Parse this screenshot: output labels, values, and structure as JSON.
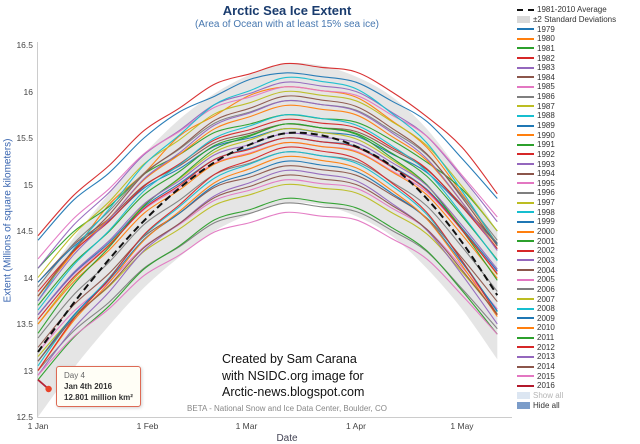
{
  "chart_data": {
    "type": "line",
    "title": "Arctic Sea Ice Extent",
    "subtitle": "(Area of Ocean with at least 15% sea ice)",
    "xlabel": "Date",
    "ylabel": "Extent (Millions of square kilometers)",
    "ylim": [
      12.5,
      16.5
    ],
    "grid": false,
    "legend_position": "right",
    "y_ticks": [
      12.5,
      13,
      13.5,
      14,
      14.5,
      15,
      15.5,
      16,
      16.5
    ],
    "x_ticks": [
      {
        "day": 1,
        "label": "1 Jan"
      },
      {
        "day": 32,
        "label": "1 Feb"
      },
      {
        "day": 60,
        "label": "1 Mar"
      },
      {
        "day": 91,
        "label": "1 Apr"
      },
      {
        "day": 121,
        "label": "1 May"
      }
    ],
    "days": [
      1,
      11,
      21,
      31,
      41,
      51,
      61,
      71,
      81,
      91,
      101,
      111,
      121,
      131
    ],
    "average": {
      "name": "1981-2010 Average",
      "color": "#111111",
      "dashed": true,
      "values": [
        13.2,
        13.72,
        14.19,
        14.61,
        14.96,
        15.24,
        15.43,
        15.55,
        15.53,
        15.41,
        15.2,
        14.85,
        14.38,
        13.81
      ]
    },
    "band": {
      "name": "±2 Standard Deviations",
      "color": "#e0e0e0",
      "upper": [
        13.9,
        14.42,
        14.9,
        15.33,
        15.7,
        15.98,
        16.18,
        16.3,
        16.28,
        16.16,
        15.95,
        15.6,
        15.1,
        14.5
      ],
      "lower": [
        12.5,
        13.02,
        13.48,
        13.89,
        14.22,
        14.5,
        14.68,
        14.8,
        14.78,
        14.66,
        14.45,
        14.1,
        13.66,
        13.12
      ]
    },
    "series": [
      {
        "name": "1979",
        "color": "#1f77b4",
        "values": [
          14.4,
          14.83,
          15.12,
          15.5,
          15.78,
          15.95,
          16.13,
          16.2,
          16.16,
          16.1,
          15.9,
          15.68,
          15.28,
          14.85
        ]
      },
      {
        "name": "1980",
        "color": "#ff7f0e",
        "values": [
          13.8,
          14.27,
          14.78,
          15.12,
          15.52,
          15.74,
          15.96,
          16.05,
          16.01,
          15.94,
          15.69,
          15.4,
          14.9,
          14.36
        ]
      },
      {
        "name": "1981",
        "color": "#2ca02c",
        "values": [
          14.1,
          14.49,
          14.76,
          15.11,
          15.32,
          15.56,
          15.65,
          15.75,
          15.71,
          15.67,
          15.48,
          15.24,
          14.95,
          14.5
        ]
      },
      {
        "name": "1982",
        "color": "#d62728",
        "values": [
          14.45,
          14.88,
          15.2,
          15.58,
          15.82,
          16.08,
          16.19,
          16.3,
          16.26,
          16.21,
          16.0,
          15.73,
          15.4,
          14.9
        ]
      },
      {
        "name": "1983",
        "color": "#9467bd",
        "values": [
          14.1,
          14.56,
          14.91,
          15.32,
          15.58,
          15.86,
          15.98,
          16.1,
          16.06,
          16.0,
          15.78,
          15.52,
          15.08,
          14.6
        ]
      },
      {
        "name": "1984",
        "color": "#8c564b",
        "values": [
          13.95,
          14.35,
          14.63,
          14.99,
          15.2,
          15.45,
          15.55,
          15.65,
          15.61,
          15.57,
          15.38,
          15.16,
          14.78,
          14.37
        ]
      },
      {
        "name": "1985",
        "color": "#e377c2",
        "values": [
          14.2,
          14.63,
          14.95,
          15.33,
          15.57,
          15.83,
          15.94,
          16.05,
          16.01,
          15.96,
          15.75,
          15.52,
          15.1,
          14.65
        ]
      },
      {
        "name": "1986",
        "color": "#7f7f7f",
        "values": [
          13.9,
          14.36,
          14.71,
          15.12,
          15.38,
          15.66,
          15.78,
          15.9,
          15.86,
          15.8,
          15.58,
          15.32,
          14.88,
          14.4
        ]
      },
      {
        "name": "1987",
        "color": "#bcbd22",
        "values": [
          14.0,
          14.46,
          14.81,
          15.22,
          15.48,
          15.76,
          15.88,
          16.0,
          15.96,
          15.9,
          15.68,
          15.42,
          14.98,
          14.5
        ]
      },
      {
        "name": "1988",
        "color": "#17becf",
        "values": [
          13.75,
          14.3,
          14.73,
          15.21,
          15.53,
          15.86,
          16.01,
          16.15,
          16.11,
          16.03,
          15.77,
          15.45,
          14.93,
          14.35
        ]
      },
      {
        "name": "1989",
        "color": "#1f77b4",
        "values": [
          13.95,
          14.33,
          14.61,
          14.96,
          15.17,
          15.41,
          15.5,
          15.6,
          15.56,
          15.52,
          15.33,
          15.13,
          14.76,
          14.36
        ]
      },
      {
        "name": "1990",
        "color": "#ff7f0e",
        "values": [
          13.8,
          14.27,
          14.63,
          15.05,
          15.32,
          15.6,
          15.73,
          15.85,
          15.81,
          15.75,
          15.52,
          15.26,
          14.81,
          14.31
        ]
      },
      {
        "name": "1991",
        "color": "#2ca02c",
        "values": [
          13.7,
          14.15,
          14.49,
          14.89,
          15.14,
          15.42,
          15.53,
          15.65,
          15.61,
          15.55,
          15.34,
          15.09,
          14.66,
          14.19
        ]
      },
      {
        "name": "1992",
        "color": "#d62728",
        "values": [
          13.85,
          14.28,
          14.6,
          14.98,
          15.22,
          15.48,
          15.59,
          15.7,
          15.66,
          15.61,
          15.4,
          15.17,
          14.76,
          14.31
        ]
      },
      {
        "name": "1993",
        "color": "#9467bd",
        "values": [
          13.75,
          14.24,
          14.62,
          15.06,
          15.34,
          15.64,
          15.77,
          15.9,
          15.86,
          15.79,
          15.56,
          15.28,
          14.81,
          14.29
        ]
      },
      {
        "name": "1994",
        "color": "#8c564b",
        "values": [
          13.8,
          14.29,
          14.67,
          15.11,
          15.39,
          15.69,
          15.82,
          15.95,
          15.91,
          15.84,
          15.61,
          15.33,
          14.86,
          14.34
        ]
      },
      {
        "name": "1995",
        "color": "#e377c2",
        "values": [
          13.6,
          14.03,
          14.35,
          14.73,
          14.97,
          15.23,
          15.34,
          15.45,
          15.41,
          15.36,
          15.15,
          14.92,
          14.51,
          14.06
        ]
      },
      {
        "name": "1996",
        "color": "#7f7f7f",
        "values": [
          13.35,
          13.81,
          14.16,
          14.57,
          14.83,
          15.11,
          15.23,
          15.35,
          15.31,
          15.25,
          15.03,
          14.77,
          14.33,
          13.85
        ]
      },
      {
        "name": "1997",
        "color": "#bcbd22",
        "values": [
          13.5,
          13.98,
          14.35,
          14.78,
          15.06,
          15.35,
          15.48,
          15.6,
          15.56,
          15.49,
          15.27,
          14.99,
          14.53,
          14.03
        ]
      },
      {
        "name": "1998",
        "color": "#17becf",
        "values": [
          13.65,
          14.13,
          14.5,
          14.93,
          15.21,
          15.5,
          15.63,
          15.75,
          15.71,
          15.64,
          15.42,
          15.14,
          14.68,
          14.18
        ]
      },
      {
        "name": "1999",
        "color": "#1f77b4",
        "values": [
          13.6,
          14.04,
          14.37,
          14.76,
          15.01,
          15.27,
          15.39,
          15.5,
          15.46,
          15.41,
          15.2,
          14.95,
          14.53,
          14.07
        ]
      },
      {
        "name": "2000",
        "color": "#ff7f0e",
        "values": [
          13.5,
          13.95,
          14.29,
          14.69,
          14.94,
          15.22,
          15.33,
          15.45,
          15.41,
          15.35,
          15.14,
          14.89,
          14.46,
          13.99
        ]
      },
      {
        "name": "2001",
        "color": "#2ca02c",
        "values": [
          13.4,
          13.92,
          14.32,
          14.77,
          15.07,
          15.38,
          15.52,
          15.65,
          15.61,
          15.54,
          15.29,
          15.0,
          14.51,
          13.97
        ]
      },
      {
        "name": "2002",
        "color": "#d62728",
        "values": [
          13.55,
          14.0,
          14.34,
          14.74,
          14.99,
          15.27,
          15.38,
          15.5,
          15.46,
          15.4,
          15.19,
          14.94,
          14.51,
          14.04
        ]
      },
      {
        "name": "2003",
        "color": "#9467bd",
        "values": [
          13.6,
          14.05,
          14.39,
          14.79,
          15.04,
          15.32,
          15.43,
          15.55,
          15.51,
          15.45,
          15.24,
          14.99,
          14.56,
          14.09
        ]
      },
      {
        "name": "2004",
        "color": "#8c564b",
        "values": [
          13.25,
          13.7,
          14.04,
          14.44,
          14.69,
          14.97,
          15.08,
          15.2,
          15.16,
          15.1,
          14.89,
          14.64,
          14.21,
          13.74
        ]
      },
      {
        "name": "2005",
        "color": "#e377c2",
        "values": [
          13.2,
          13.63,
          13.95,
          14.33,
          14.57,
          14.83,
          14.94,
          15.05,
          15.01,
          14.96,
          14.75,
          14.52,
          14.11,
          13.66
        ]
      },
      {
        "name": "2006",
        "color": "#7f7f7f",
        "values": [
          13.0,
          13.42,
          13.73,
          14.1,
          14.33,
          14.59,
          14.69,
          14.8,
          14.76,
          14.71,
          14.51,
          14.28,
          13.88,
          13.45
        ]
      },
      {
        "name": "2007",
        "color": "#bcbd22",
        "values": [
          13.15,
          13.58,
          13.9,
          14.28,
          14.52,
          14.78,
          14.89,
          15.0,
          14.96,
          14.91,
          14.7,
          14.47,
          14.06,
          13.61
        ]
      },
      {
        "name": "2008",
        "color": "#17becf",
        "values": [
          13.05,
          13.58,
          13.99,
          14.45,
          14.76,
          15.07,
          15.22,
          15.35,
          15.31,
          15.23,
          14.99,
          14.68,
          14.18,
          13.63
        ]
      },
      {
        "name": "2009",
        "color": "#1f77b4",
        "values": [
          13.1,
          13.59,
          13.97,
          14.41,
          14.69,
          14.99,
          15.12,
          15.25,
          15.21,
          15.14,
          14.91,
          14.63,
          14.16,
          13.64
        ]
      },
      {
        "name": "2010",
        "color": "#ff7f0e",
        "values": [
          13.0,
          13.53,
          13.94,
          14.4,
          14.71,
          15.02,
          15.17,
          15.3,
          15.26,
          15.18,
          14.94,
          14.63,
          14.13,
          13.58
        ]
      },
      {
        "name": "2011",
        "color": "#2ca02c",
        "values": [
          12.9,
          13.35,
          13.69,
          14.09,
          14.34,
          14.62,
          14.73,
          14.85,
          14.81,
          14.75,
          14.54,
          14.29,
          13.86,
          13.39
        ]
      },
      {
        "name": "2012",
        "color": "#d62728",
        "values": [
          13.0,
          13.55,
          13.98,
          14.46,
          14.78,
          15.11,
          15.26,
          15.4,
          15.36,
          15.28,
          15.02,
          14.7,
          14.18,
          13.6
        ]
      },
      {
        "name": "2013",
        "color": "#9467bd",
        "values": [
          12.95,
          13.45,
          13.84,
          14.29,
          14.58,
          14.88,
          15.02,
          15.15,
          15.11,
          15.04,
          14.8,
          14.51,
          14.03,
          13.5
        ]
      },
      {
        "name": "2014",
        "color": "#8c564b",
        "values": [
          13.1,
          13.56,
          13.91,
          14.32,
          14.58,
          14.86,
          14.98,
          15.1,
          15.06,
          15.0,
          14.78,
          14.52,
          14.08,
          13.6
        ]
      },
      {
        "name": "2015",
        "color": "#e377c2",
        "values": [
          12.95,
          13.36,
          13.66,
          14.02,
          14.24,
          14.49,
          14.59,
          14.7,
          14.66,
          14.62,
          14.42,
          14.2,
          13.81,
          13.39
        ]
      },
      {
        "name": "2016",
        "color": "#b2182b",
        "days": [
          1,
          4
        ],
        "values": [
          12.9,
          12.801
        ]
      }
    ],
    "marker": {
      "day": 4,
      "value": 12.801,
      "color": "#e8442a"
    }
  },
  "legend": {
    "show_all": "Show all",
    "hide_all": "Hide all",
    "show_all_color": "#dce6f2",
    "hide_all_color": "#7b9cc9"
  },
  "tooltip": {
    "line1": "Day 4",
    "line2": "Jan 4th 2016",
    "line3": "12.801 million km²"
  },
  "watermark": [
    "Created by Sam Carana",
    "with NSIDC.org image for",
    "Arctic-news.blogspot.com"
  ],
  "footer": "BETA - National Snow and Ice Data Center, Boulder, CO"
}
